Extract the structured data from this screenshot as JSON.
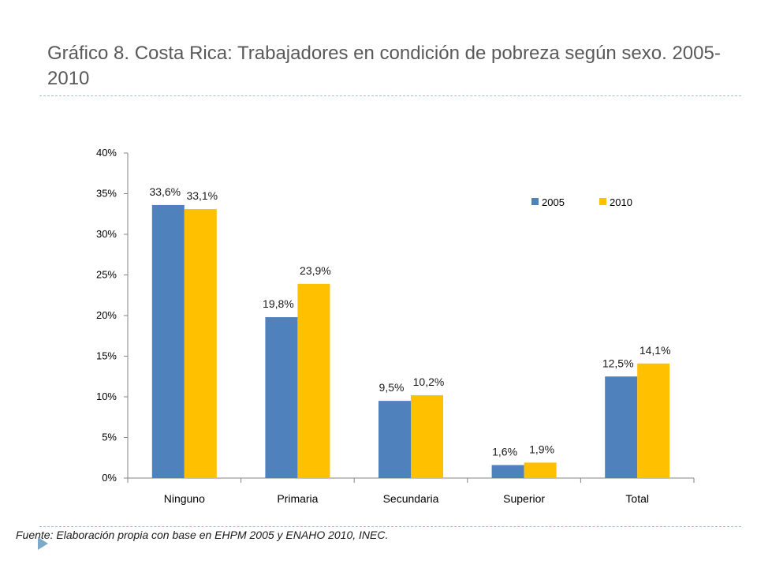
{
  "slide": {
    "title": "Gráfico 8. Costa Rica: Trabajadores en condición de pobreza según sexo. 2005-2010",
    "source": "Fuente: Elaboración propia con base en EHPM 2005 y ENAHO 2010, INEC."
  },
  "chart_data": {
    "type": "bar",
    "title": "",
    "xlabel": "",
    "ylabel": "",
    "categories": [
      "Ninguno",
      "Primaria",
      "Secundaria",
      "Superior",
      "Total"
    ],
    "series": [
      {
        "name": "2005",
        "values": [
          33.6,
          19.8,
          9.5,
          1.6,
          12.5
        ],
        "labels": [
          "33,6%",
          "19,8%",
          "9,5%",
          "1,6%",
          "12,5%"
        ],
        "color": "#4f81bd"
      },
      {
        "name": "2010",
        "values": [
          33.1,
          23.9,
          10.2,
          1.9,
          14.1
        ],
        "labels": [
          "33,1%",
          "23,9%",
          "10,2%",
          "1,9%",
          "14,1%"
        ],
        "color": "#ffc000"
      }
    ],
    "ylim": [
      0,
      40
    ],
    "yticks": [
      0,
      5,
      10,
      15,
      20,
      25,
      30,
      35,
      40
    ],
    "ytick_labels": [
      "0%",
      "5%",
      "10%",
      "15%",
      "20%",
      "25%",
      "30%",
      "35%",
      "40%"
    ],
    "grid": false,
    "legend": "top-right"
  }
}
